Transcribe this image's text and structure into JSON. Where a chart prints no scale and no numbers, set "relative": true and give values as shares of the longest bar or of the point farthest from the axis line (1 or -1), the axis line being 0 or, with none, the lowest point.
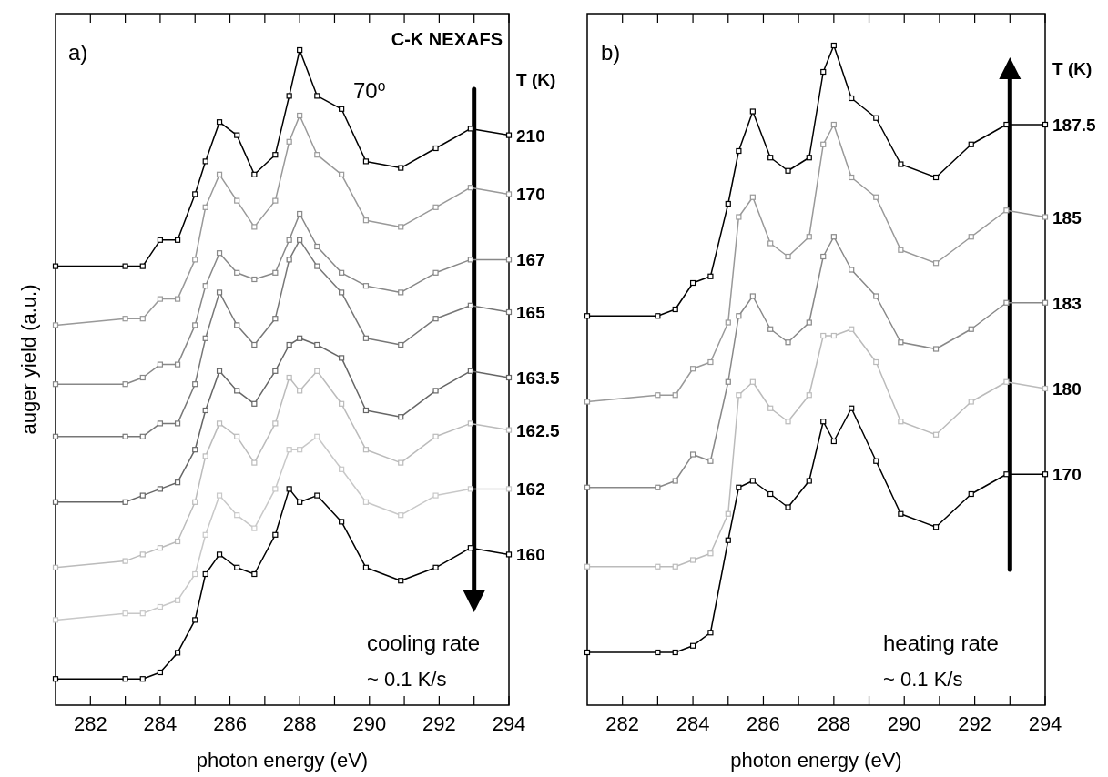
{
  "chart_data": [
    {
      "type": "line",
      "relative": true,
      "xlabel": "photon energy (eV)",
      "ylabel": "auger yield (a.u.)",
      "legend_title": "T (K)",
      "marker": "square",
      "xlim": [
        281,
        294
      ],
      "xticks": [
        282,
        {
          "value": 283,
          "label": null
        },
        284,
        {
          "value": 285,
          "label": null
        },
        286,
        {
          "value": 287,
          "label": null
        },
        288,
        {
          "value": 289,
          "label": null
        },
        290,
        {
          "value": 291,
          "label": null
        },
        292,
        {
          "value": 293,
          "label": null
        },
        294
      ],
      "annotations": [
        "a)",
        "C-K NEXAFS",
        "70$^{o}$",
        "cooling rate",
        "~ 0.1 K/s"
      ],
      "x": [
        281,
        283,
        283.5,
        284,
        284.5,
        285,
        285.3,
        285.7,
        286.2,
        286.7,
        287.3,
        287.7,
        288,
        288.5,
        289.2,
        289.9,
        290.9,
        291.9,
        292.9,
        294
      ],
      "series": [
        {
          "name": "210",
          "color": "#000000",
          "values": [
            0.67,
            0.67,
            0.67,
            0.71,
            0.71,
            0.78,
            0.83,
            0.89,
            0.87,
            0.81,
            0.84,
            0.93,
            1.0,
            0.93,
            0.91,
            0.83,
            0.82,
            0.85,
            0.88,
            0.87
          ]
        },
        {
          "name": "170",
          "color": "#999999",
          "values": [
            0.58,
            0.59,
            0.59,
            0.62,
            0.62,
            0.68,
            0.76,
            0.81,
            0.77,
            0.73,
            0.77,
            0.86,
            0.9,
            0.84,
            0.81,
            0.74,
            0.73,
            0.76,
            0.79,
            0.78
          ]
        },
        {
          "name": "167",
          "color": "#888888",
          "values": [
            0.49,
            0.49,
            0.5,
            0.52,
            0.52,
            0.58,
            0.64,
            0.69,
            0.66,
            0.65,
            0.66,
            0.71,
            0.75,
            0.7,
            0.66,
            0.64,
            0.63,
            0.66,
            0.68,
            0.68
          ]
        },
        {
          "name": "165",
          "color": "#777777",
          "values": [
            0.41,
            0.41,
            0.41,
            0.43,
            0.43,
            0.49,
            0.56,
            0.63,
            0.58,
            0.55,
            0.59,
            0.68,
            0.71,
            0.67,
            0.63,
            0.56,
            0.55,
            0.59,
            0.61,
            0.6
          ]
        },
        {
          "name": "163.5",
          "color": "#666666",
          "values": [
            0.31,
            0.31,
            0.32,
            0.33,
            0.34,
            0.39,
            0.45,
            0.51,
            0.48,
            0.46,
            0.51,
            0.55,
            0.56,
            0.55,
            0.53,
            0.45,
            0.44,
            0.48,
            0.51,
            0.5
          ]
        },
        {
          "name": "162.5",
          "color": "#bbbbbb",
          "values": [
            0.21,
            0.22,
            0.23,
            0.24,
            0.25,
            0.31,
            0.38,
            0.43,
            0.41,
            0.37,
            0.43,
            0.5,
            0.48,
            0.51,
            0.46,
            0.39,
            0.37,
            0.41,
            0.43,
            0.42
          ]
        },
        {
          "name": "162",
          "color": "#c8c8c8",
          "values": [
            0.13,
            0.14,
            0.14,
            0.15,
            0.16,
            0.2,
            0.26,
            0.32,
            0.29,
            0.27,
            0.33,
            0.39,
            0.39,
            0.41,
            0.36,
            0.31,
            0.29,
            0.32,
            0.33,
            0.33
          ]
        },
        {
          "name": "160",
          "color": "#000000",
          "values": [
            0.04,
            0.04,
            0.04,
            0.05,
            0.08,
            0.13,
            0.2,
            0.23,
            0.21,
            0.2,
            0.26,
            0.33,
            0.31,
            0.32,
            0.28,
            0.21,
            0.19,
            0.21,
            0.24,
            0.23
          ]
        }
      ]
    },
    {
      "type": "line",
      "relative": true,
      "xlabel": "photon energy (eV)",
      "legend_title": "T (K)",
      "marker": "square",
      "xlim": [
        281,
        294
      ],
      "xticks": [
        282,
        {
          "value": 283,
          "label": null
        },
        284,
        {
          "value": 285,
          "label": null
        },
        286,
        {
          "value": 287,
          "label": null
        },
        288,
        {
          "value": 289,
          "label": null
        },
        290,
        {
          "value": 291,
          "label": null
        },
        292,
        {
          "value": 293,
          "label": null
        },
        294
      ],
      "annotations": [
        "b)",
        "heating rate",
        "~ 0.1 K/s"
      ],
      "x": [
        281,
        283,
        283.5,
        284,
        284.5,
        285,
        285.3,
        285.7,
        286.2,
        286.7,
        287.3,
        287.7,
        288,
        288.5,
        289.2,
        289.9,
        290.9,
        291.9,
        292.9,
        294
      ],
      "series": [
        {
          "name": "187.5",
          "color": "#000000",
          "values": [
            0.59,
            0.59,
            0.6,
            0.64,
            0.65,
            0.76,
            0.84,
            0.9,
            0.83,
            0.81,
            0.83,
            0.96,
            1.0,
            0.92,
            0.89,
            0.82,
            0.8,
            0.85,
            0.88,
            0.88
          ]
        },
        {
          "name": "185",
          "color": "#999999",
          "values": [
            0.46,
            0.47,
            0.47,
            0.51,
            0.52,
            0.58,
            0.74,
            0.77,
            0.7,
            0.68,
            0.71,
            0.85,
            0.88,
            0.8,
            0.77,
            0.69,
            0.67,
            0.71,
            0.75,
            0.74
          ]
        },
        {
          "name": "183",
          "color": "#888888",
          "values": [
            0.33,
            0.33,
            0.34,
            0.38,
            0.37,
            0.49,
            0.59,
            0.62,
            0.57,
            0.55,
            0.58,
            0.68,
            0.71,
            0.66,
            0.62,
            0.55,
            0.54,
            0.57,
            0.61,
            0.61
          ]
        },
        {
          "name": "180",
          "color": "#bbbbbb",
          "values": [
            0.21,
            0.21,
            0.21,
            0.22,
            0.23,
            0.29,
            0.47,
            0.49,
            0.45,
            0.43,
            0.47,
            0.56,
            0.56,
            0.57,
            0.52,
            0.43,
            0.41,
            0.46,
            0.49,
            0.48
          ]
        },
        {
          "name": "170",
          "color": "#000000",
          "values": [
            0.08,
            0.08,
            0.08,
            0.09,
            0.11,
            0.25,
            0.33,
            0.34,
            0.32,
            0.3,
            0.34,
            0.43,
            0.4,
            0.45,
            0.37,
            0.29,
            0.27,
            0.32,
            0.35,
            0.35
          ]
        }
      ]
    }
  ]
}
